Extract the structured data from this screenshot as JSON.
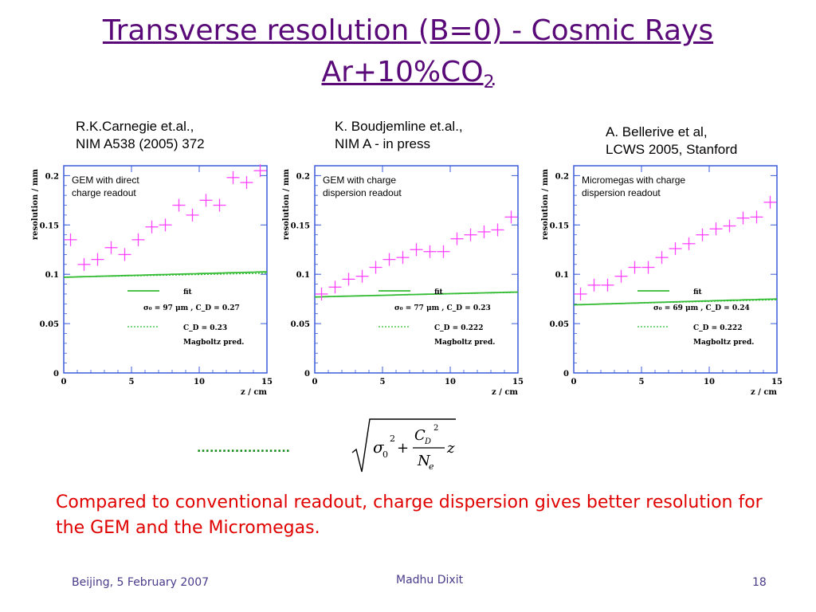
{
  "title": {
    "line1": "Transverse resolution (B=0) - Cosmic Rays",
    "line2_main": "Ar+10%CO",
    "line2_sub": "2"
  },
  "references": [
    {
      "line1": "R.K.Carnegie et.al.,",
      "line2": "NIM A538 (2005) 372"
    },
    {
      "line1": "K. Boudjemline et.al.,",
      "line2": "NIM A - in press"
    },
    {
      "line1": "A. Bellerive et al,",
      "line2": "LCWS 2005, Stanford"
    }
  ],
  "chart_data": [
    {
      "type": "scatter",
      "title_lines": [
        "GEM with direct",
        "charge readout"
      ],
      "xlabel": "z / cm",
      "ylabel": "resolution / mm",
      "xlim": [
        0,
        15
      ],
      "ylim": [
        0,
        0.21
      ],
      "xticks": [
        "0",
        "5",
        "10",
        "15"
      ],
      "yticks": [
        "0",
        "0.05",
        "0.1",
        "0.15",
        "0.2"
      ],
      "points": [
        [
          0.5,
          0.135
        ],
        [
          1.5,
          0.11
        ],
        [
          2.5,
          0.115
        ],
        [
          3.5,
          0.127
        ],
        [
          4.5,
          0.12
        ],
        [
          5.5,
          0.135
        ],
        [
          6.5,
          0.148
        ],
        [
          7.5,
          0.15
        ],
        [
          8.5,
          0.17
        ],
        [
          9.5,
          0.16
        ],
        [
          10.5,
          0.175
        ],
        [
          11.5,
          0.17
        ],
        [
          12.5,
          0.198
        ],
        [
          13.5,
          0.193
        ],
        [
          14.5,
          0.205
        ]
      ],
      "fit": {
        "sigma0": 0.097,
        "cd": 0.27
      },
      "pred": {
        "sigma0": 0.097,
        "cd": 0.23
      },
      "legend": {
        "fit_label": "fit",
        "fit_params": "σ₀ = 97 μm , C_D = 0.27",
        "pred_label": "C_D = 0.23",
        "pred_note": "Magboltz pred."
      }
    },
    {
      "type": "scatter",
      "title_lines": [
        "GEM with charge",
        "dispersion readout"
      ],
      "xlabel": "z / cm",
      "ylabel": "resolution / mm",
      "xlim": [
        0,
        15
      ],
      "ylim": [
        0,
        0.21
      ],
      "xticks": [
        "0",
        "5",
        "10",
        "15"
      ],
      "yticks": [
        "0",
        "0.05",
        "0.1",
        "0.15",
        "0.2"
      ],
      "points": [
        [
          0.5,
          0.08
        ],
        [
          1.5,
          0.087
        ],
        [
          2.5,
          0.095
        ],
        [
          3.5,
          0.098
        ],
        [
          4.5,
          0.107
        ],
        [
          5.5,
          0.115
        ],
        [
          6.5,
          0.117
        ],
        [
          7.5,
          0.125
        ],
        [
          8.5,
          0.123
        ],
        [
          9.5,
          0.123
        ],
        [
          10.5,
          0.136
        ],
        [
          11.5,
          0.14
        ],
        [
          12.5,
          0.143
        ],
        [
          13.5,
          0.145
        ],
        [
          14.5,
          0.158
        ]
      ],
      "fit": {
        "sigma0": 0.077,
        "cd": 0.23
      },
      "pred": {
        "sigma0": 0.077,
        "cd": 0.222
      },
      "legend": {
        "fit_label": "fit",
        "fit_params": "σ₀ = 77 μm , C_D = 0.23",
        "pred_label": "C_D = 0.222",
        "pred_note": "Magboltz pred."
      }
    },
    {
      "type": "scatter",
      "title_lines": [
        "Micromegas with charge",
        "dispersion readout"
      ],
      "xlabel": "z / cm",
      "ylabel": "resolution / mm",
      "xlim": [
        0,
        15
      ],
      "ylim": [
        0,
        0.21
      ],
      "xticks": [
        "0",
        "5",
        "10",
        "15"
      ],
      "yticks": [
        "0",
        "0.05",
        "0.1",
        "0.15",
        "0.2"
      ],
      "points": [
        [
          0.5,
          0.08
        ],
        [
          1.5,
          0.089
        ],
        [
          2.5,
          0.089
        ],
        [
          3.5,
          0.098
        ],
        [
          4.5,
          0.107
        ],
        [
          5.5,
          0.107
        ],
        [
          6.5,
          0.117
        ],
        [
          7.5,
          0.126
        ],
        [
          8.5,
          0.131
        ],
        [
          9.5,
          0.14
        ],
        [
          10.5,
          0.146
        ],
        [
          11.5,
          0.149
        ],
        [
          12.5,
          0.157
        ],
        [
          13.5,
          0.158
        ],
        [
          14.5,
          0.173
        ]
      ],
      "fit": {
        "sigma0": 0.069,
        "cd": 0.24
      },
      "pred": {
        "sigma0": 0.069,
        "cd": 0.222
      },
      "legend": {
        "fit_label": "fit",
        "fit_params": "σ₀ = 69 μm , C_D = 0.24",
        "pred_label": "C_D = 0.222",
        "pred_note": "Magboltz pred."
      }
    }
  ],
  "formula": {
    "sigma": "σ",
    "zero": "0",
    "square": "2",
    "plus": "+",
    "numerator": "C",
    "numerator_sub": "D",
    "numerator_sup": "2",
    "denominator": "N",
    "denominator_sub": "e",
    "z": "z"
  },
  "dotted_marker": "......................",
  "conclusion": "Compared to conventional readout, charge dispersion  gives better resolution for the GEM and the Micromegas.",
  "footer": {
    "left": "Beijing, 5 February 2007",
    "center": "Madhu Dixit",
    "right": "18"
  },
  "colors": {
    "title": "#5a0a78",
    "conclusion": "#e00000",
    "axis": "#3a5ad8",
    "points": "#ff44ff",
    "fit": "#33bb33",
    "pred": "#33bb33",
    "text": "#000000"
  }
}
